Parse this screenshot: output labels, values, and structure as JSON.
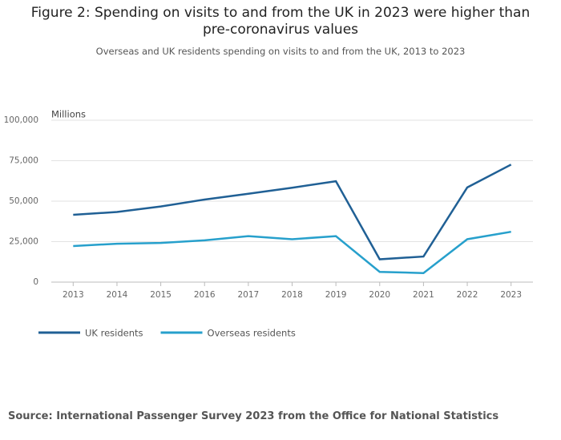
{
  "chart_data": {
    "type": "line",
    "title": "Figure 2: Spending on visits to and from the UK in 2023 were higher than pre-coronavirus values",
    "subtitle": "Overseas and UK residents spending on visits to and from the UK, 2013 to 2023",
    "y_label": "Millions",
    "source": "Source: International Passenger Survey 2023 from the Office for National Statistics",
    "categories": [
      "2013",
      "2014",
      "2015",
      "2016",
      "2017",
      "2018",
      "2019",
      "2020",
      "2021",
      "2022",
      "2023"
    ],
    "series": [
      {
        "name": "UK residents",
        "color": "#206095",
        "values": [
          41600,
          43300,
          46700,
          51000,
          54600,
          58300,
          62300,
          14100,
          15800,
          58500,
          72600
        ]
      },
      {
        "name": "Overseas residents",
        "color": "#27a0cc",
        "values": [
          22300,
          23700,
          24200,
          25800,
          28400,
          26500,
          28400,
          6300,
          5600,
          26500,
          31100
        ]
      }
    ],
    "ylim": [
      0,
      100000
    ],
    "yticks": [
      0,
      {
        "value": 25000,
        "label": "25,000"
      },
      {
        "value": 50000,
        "label": "50,000"
      },
      {
        "value": 75000,
        "label": "75,000"
      },
      {
        "value": 100000,
        "label": "100,000"
      }
    ],
    "grid": true
  }
}
